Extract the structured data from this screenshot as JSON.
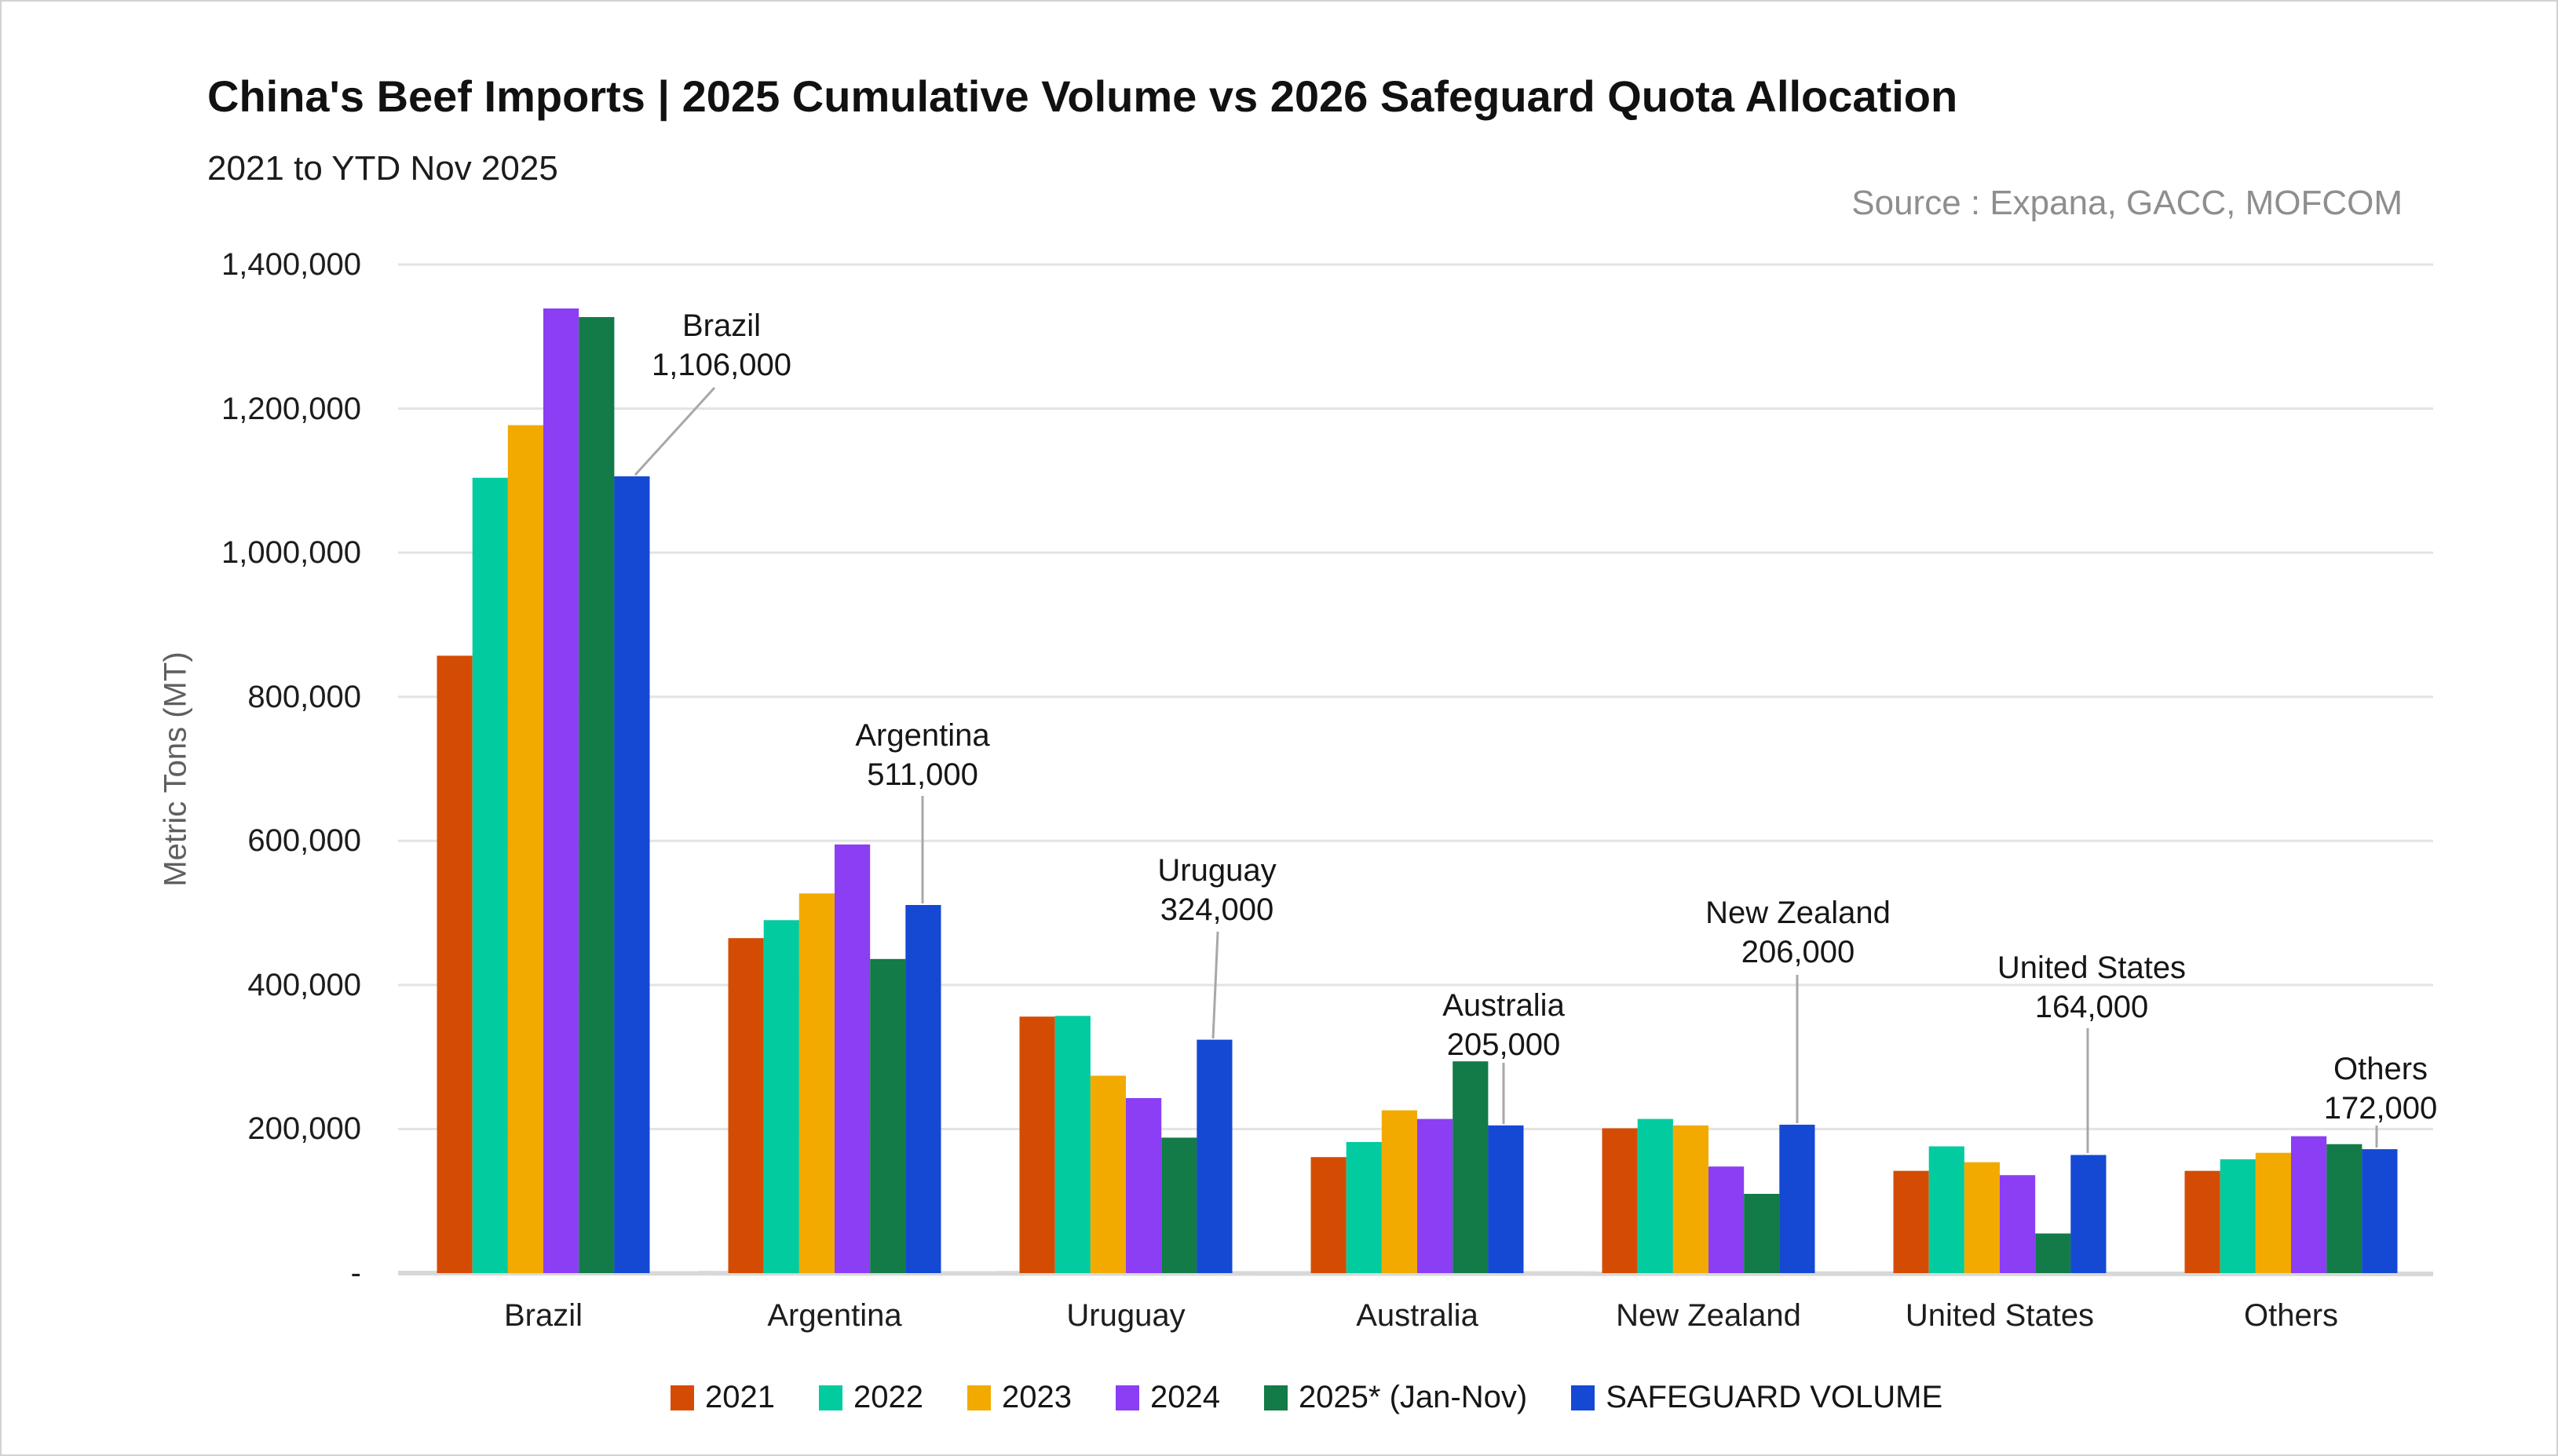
{
  "chart_data": {
    "type": "bar",
    "title": "China's Beef Imports | 2025 Cumulative Volume vs 2026 Safeguard Quota Allocation",
    "subtitle": "2021 to YTD Nov 2025",
    "source": "Source : Expana, GACC, MOFCOM",
    "ylabel": "Metric Tons (MT)",
    "ylim": [
      0,
      1400000
    ],
    "ytick_step": 200000,
    "ytick_labels": [
      "1,400,000",
      "1,200,000",
      "1,000,000",
      "800,000",
      "600,000",
      "400,000",
      "200,000",
      "-"
    ],
    "grid": "horizontal",
    "legend_position": "bottom",
    "categories": [
      "Brazil",
      "Argentina",
      "Uruguay",
      "Australia",
      "New Zealand",
      "United States",
      "Others"
    ],
    "series": [
      {
        "name": "2021",
        "color": "#D44C04",
        "values": [
          857000,
          465000,
          356000,
          161000,
          201000,
          142000,
          142000
        ]
      },
      {
        "name": "2022",
        "color": "#02CBA0",
        "values": [
          1104000,
          490000,
          357000,
          182000,
          214000,
          176000,
          158000
        ]
      },
      {
        "name": "2023",
        "color": "#F2AA00",
        "values": [
          1177000,
          527000,
          274000,
          226000,
          205000,
          154000,
          167000
        ]
      },
      {
        "name": "2024",
        "color": "#8B3EF3",
        "values": [
          1339000,
          595000,
          243000,
          214000,
          148000,
          136000,
          190000
        ]
      },
      {
        "name": "2025* (Jan-Nov)",
        "color": "#127B48",
        "values": [
          1327000,
          436000,
          188000,
          294000,
          110000,
          55000,
          179000
        ]
      },
      {
        "name": "SAFEGUARD VOLUME",
        "color": "#1549D4",
        "values": [
          1106000,
          511000,
          324000,
          205000,
          206000,
          164000,
          172000
        ]
      }
    ],
    "annotations": [
      {
        "category": "Brazil",
        "label": "Brazil",
        "value_label": "1,106,000"
      },
      {
        "category": "Argentina",
        "label": "Argentina",
        "value_label": "511,000"
      },
      {
        "category": "Uruguay",
        "label": "Uruguay",
        "value_label": "324,000"
      },
      {
        "category": "Australia",
        "label": "Australia",
        "value_label": "205,000"
      },
      {
        "category": "New Zealand",
        "label": "New Zealand",
        "value_label": "206,000"
      },
      {
        "category": "United States",
        "label": "United States",
        "value_label": "164,000"
      },
      {
        "category": "Others",
        "label": "Others",
        "value_label": "172,000"
      }
    ],
    "colors": {
      "gridline": "#e3e3e3",
      "baseline": "#d8d8d8",
      "callout_line": "#a8a8a8",
      "tick_text": "#1d1d1d",
      "source_text": "#8e8e8e",
      "axis_title_text": "#5f5f5f"
    }
  }
}
